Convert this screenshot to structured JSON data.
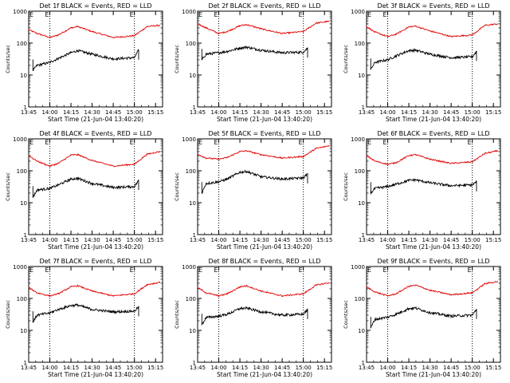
{
  "figure_title": "",
  "colors": {
    "events": "#000000",
    "lld": "#e00000",
    "axes": "#000000",
    "background": "#ffffff"
  },
  "chart_data": [
    {
      "type": "line",
      "detector": "1f",
      "title": "Det 1f BLACK = Events, RED = LLD",
      "xlabel": "Start Time (21-Jun-04 13:40:20)",
      "ylabel": "Counts/sec",
      "xlim": [
        13.75,
        15.333
      ],
      "ylim": [
        1,
        1000
      ],
      "yscale": "log",
      "x_ticks": [
        "13:45",
        "14:00",
        "14:15",
        "14:30",
        "14:45",
        "15:00",
        "15:15"
      ],
      "y_ticks": [
        "1",
        "10",
        "100",
        "1000"
      ],
      "attenuator_markers": [
        {
          "time": 14.0,
          "label": "E"
        },
        {
          "time": 15.0,
          "label": "E"
        }
      ],
      "series": [
        {
          "name": "LLD",
          "color": "#e00000",
          "x": [
            13.75,
            13.85,
            14.0,
            14.1,
            14.25,
            14.33,
            14.5,
            14.75,
            15.0,
            15.15,
            15.3
          ],
          "y": [
            260,
            200,
            150,
            180,
            300,
            330,
            230,
            150,
            170,
            330,
            360
          ]
        },
        {
          "name": "Events",
          "color": "#000000",
          "x": [
            13.8,
            13.85,
            14.0,
            14.1,
            14.25,
            14.33,
            14.5,
            14.75,
            15.0,
            15.05
          ],
          "y": [
            14,
            20,
            25,
            33,
            50,
            58,
            45,
            32,
            35,
            60
          ]
        }
      ]
    },
    {
      "type": "line",
      "detector": "2f",
      "title": "Det 2f BLACK = Events, RED = LLD",
      "xlabel": "Start Time (21-Jun-04 13:40:20)",
      "ylabel": "Counts/sec",
      "xlim": [
        13.75,
        15.333
      ],
      "ylim": [
        1,
        1000
      ],
      "yscale": "log",
      "x_ticks": [
        "13:45",
        "14:00",
        "14:15",
        "14:30",
        "14:45",
        "15:00",
        "15:15"
      ],
      "y_ticks": [
        "1",
        "10",
        "100",
        "1000"
      ],
      "attenuator_markers": [
        {
          "time": 14.0,
          "label": "E"
        },
        {
          "time": 15.0,
          "label": "E"
        }
      ],
      "series": [
        {
          "name": "LLD",
          "color": "#e00000",
          "x": [
            13.75,
            13.85,
            14.0,
            14.1,
            14.25,
            14.33,
            14.5,
            14.75,
            15.0,
            15.15,
            15.3
          ],
          "y": [
            400,
            300,
            200,
            230,
            350,
            380,
            280,
            200,
            230,
            420,
            480
          ]
        },
        {
          "name": "Events",
          "color": "#000000",
          "x": [
            13.8,
            13.85,
            14.0,
            14.1,
            14.25,
            14.33,
            14.5,
            14.75,
            15.0,
            15.05
          ],
          "y": [
            30,
            45,
            50,
            55,
            70,
            75,
            60,
            50,
            52,
            70
          ]
        }
      ]
    },
    {
      "type": "line",
      "detector": "3f",
      "title": "Det 3f BLACK = Events, RED = LLD",
      "xlabel": "Start Time (21-Jun-04 13:40:20)",
      "ylabel": "Counts/sec",
      "xlim": [
        13.75,
        15.333
      ],
      "ylim": [
        1,
        1000
      ],
      "yscale": "log",
      "x_ticks": [
        "13:45",
        "14:00",
        "14:15",
        "14:30",
        "14:45",
        "15:00",
        "15:15"
      ],
      "y_ticks": [
        "1",
        "10",
        "100",
        "1000"
      ],
      "attenuator_markers": [
        {
          "time": 14.0,
          "label": "E"
        },
        {
          "time": 15.0,
          "label": "E"
        }
      ],
      "series": [
        {
          "name": "LLD",
          "color": "#e00000",
          "x": [
            13.75,
            13.85,
            14.0,
            14.1,
            14.25,
            14.33,
            14.5,
            14.75,
            15.0,
            15.15,
            15.3
          ],
          "y": [
            330,
            220,
            160,
            190,
            320,
            340,
            240,
            160,
            180,
            360,
            400
          ]
        },
        {
          "name": "Events",
          "color": "#000000",
          "x": [
            13.8,
            13.85,
            14.0,
            14.1,
            14.25,
            14.33,
            14.5,
            14.75,
            15.0,
            15.05
          ],
          "y": [
            15,
            25,
            30,
            40,
            58,
            60,
            45,
            35,
            37,
            55
          ]
        }
      ]
    },
    {
      "type": "line",
      "detector": "4f",
      "title": "Det 4f BLACK = Events, RED = LLD",
      "xlabel": "Start Time (21-Jun-04 13:40:20)",
      "ylabel": "Counts/sec",
      "xlim": [
        13.75,
        15.333
      ],
      "ylim": [
        1,
        1000
      ],
      "yscale": "log",
      "x_ticks": [
        "13:45",
        "14:00",
        "14:15",
        "14:30",
        "14:45",
        "15:00",
        "15:15"
      ],
      "y_ticks": [
        "1",
        "10",
        "100",
        "1000"
      ],
      "attenuator_markers": [
        {
          "time": 14.0,
          "label": "E"
        },
        {
          "time": 15.0,
          "label": "E"
        }
      ],
      "series": [
        {
          "name": "LLD",
          "color": "#e00000",
          "x": [
            13.75,
            13.85,
            14.0,
            14.1,
            14.25,
            14.33,
            14.5,
            14.75,
            15.0,
            15.15,
            15.3
          ],
          "y": [
            300,
            200,
            140,
            170,
            310,
            320,
            210,
            140,
            160,
            330,
            400
          ]
        },
        {
          "name": "Events",
          "color": "#000000",
          "x": [
            13.8,
            13.85,
            14.0,
            14.1,
            14.25,
            14.33,
            14.5,
            14.75,
            15.0,
            15.05
          ],
          "y": [
            15,
            25,
            28,
            36,
            55,
            58,
            40,
            30,
            32,
            50
          ]
        }
      ]
    },
    {
      "type": "line",
      "detector": "5f",
      "title": "Det 5f BLACK = Events, RED = LLD",
      "xlabel": "Start Time (21-Jun-04 13:40:20)",
      "ylabel": "Counts/sec",
      "xlim": [
        13.75,
        15.333
      ],
      "ylim": [
        1,
        1000
      ],
      "yscale": "log",
      "x_ticks": [
        "13:45",
        "14:00",
        "14:15",
        "14:30",
        "14:45",
        "15:00",
        "15:15"
      ],
      "y_ticks": [
        "1",
        "10",
        "100",
        "1000"
      ],
      "attenuator_markers": [
        {
          "time": 14.0,
          "label": "E"
        },
        {
          "time": 15.0,
          "label": "E"
        }
      ],
      "series": [
        {
          "name": "LLD",
          "color": "#e00000",
          "x": [
            13.75,
            13.85,
            14.0,
            14.1,
            14.25,
            14.33,
            14.5,
            14.75,
            15.0,
            15.15,
            15.3
          ],
          "y": [
            330,
            250,
            230,
            260,
            400,
            420,
            320,
            250,
            280,
            500,
            600
          ]
        },
        {
          "name": "Events",
          "color": "#000000",
          "x": [
            13.8,
            13.85,
            14.0,
            14.1,
            14.25,
            14.33,
            14.5,
            14.75,
            15.0,
            15.05
          ],
          "y": [
            20,
            40,
            45,
            55,
            90,
            95,
            65,
            55,
            60,
            80
          ]
        }
      ]
    },
    {
      "type": "line",
      "detector": "6f",
      "title": "Det 6f BLACK = Events, RED = LLD",
      "xlabel": "Start Time (21-Jun-04 13:40:20)",
      "ylabel": "Counts/sec",
      "xlim": [
        13.75,
        15.333
      ],
      "ylim": [
        1,
        1000
      ],
      "yscale": "log",
      "x_ticks": [
        "13:45",
        "14:00",
        "14:15",
        "14:30",
        "14:45",
        "15:00",
        "15:15"
      ],
      "y_ticks": [
        "1",
        "10",
        "100",
        "1000"
      ],
      "attenuator_markers": [
        {
          "time": 14.0,
          "label": "E"
        },
        {
          "time": 15.0,
          "label": "E"
        }
      ],
      "series": [
        {
          "name": "LLD",
          "color": "#e00000",
          "x": [
            13.75,
            13.85,
            14.0,
            14.1,
            14.25,
            14.33,
            14.5,
            14.75,
            15.0,
            15.15,
            15.3
          ],
          "y": [
            300,
            200,
            160,
            180,
            300,
            320,
            230,
            170,
            190,
            350,
            420
          ]
        },
        {
          "name": "Events",
          "color": "#000000",
          "x": [
            13.8,
            13.85,
            14.0,
            14.1,
            14.25,
            14.33,
            14.5,
            14.75,
            15.0,
            15.05
          ],
          "y": [
            20,
            28,
            32,
            38,
            50,
            52,
            42,
            34,
            36,
            45
          ]
        }
      ]
    },
    {
      "type": "line",
      "detector": "7f",
      "title": "Det 7f BLACK = Events, RED = LLD",
      "xlabel": "Start Time (21-Jun-04 13:40:20)",
      "ylabel": "Counts/sec",
      "xlim": [
        13.75,
        15.333
      ],
      "ylim": [
        1,
        1000
      ],
      "yscale": "log",
      "x_ticks": [
        "13:45",
        "14:00",
        "14:15",
        "14:30",
        "14:45",
        "15:00",
        "15:15"
      ],
      "y_ticks": [
        "1",
        "10",
        "100",
        "1000"
      ],
      "attenuator_markers": [
        {
          "time": 14.0,
          "label": "E"
        },
        {
          "time": 15.0,
          "label": "E"
        }
      ],
      "series": [
        {
          "name": "LLD",
          "color": "#e00000",
          "x": [
            13.75,
            13.85,
            14.0,
            14.1,
            14.25,
            14.33,
            14.5,
            14.75,
            15.0,
            15.15,
            15.3
          ],
          "y": [
            220,
            150,
            120,
            140,
            230,
            250,
            170,
            120,
            140,
            270,
            320
          ]
        },
        {
          "name": "Events",
          "color": "#000000",
          "x": [
            13.8,
            13.85,
            14.0,
            14.1,
            14.25,
            14.33,
            14.5,
            14.75,
            15.0,
            15.05
          ],
          "y": [
            18,
            30,
            35,
            45,
            60,
            62,
            45,
            38,
            40,
            55
          ]
        }
      ]
    },
    {
      "type": "line",
      "detector": "8f",
      "title": "Det 8f BLACK = Events, RED = LLD",
      "xlabel": "Start Time (21-Jun-04 13:40:20)",
      "ylabel": "Counts/sec",
      "xlim": [
        13.75,
        15.333
      ],
      "ylim": [
        1,
        1000
      ],
      "yscale": "log",
      "x_ticks": [
        "13:45",
        "14:00",
        "14:15",
        "14:30",
        "14:45",
        "15:00",
        "15:15"
      ],
      "y_ticks": [
        "1",
        "10",
        "100",
        "1000"
      ],
      "attenuator_markers": [
        {
          "time": 14.0,
          "label": "E"
        },
        {
          "time": 15.0,
          "label": "E"
        }
      ],
      "series": [
        {
          "name": "LLD",
          "color": "#e00000",
          "x": [
            13.75,
            13.85,
            14.0,
            14.1,
            14.25,
            14.33,
            14.5,
            14.75,
            15.0,
            15.15,
            15.3
          ],
          "y": [
            220,
            150,
            120,
            140,
            230,
            250,
            170,
            120,
            140,
            260,
            310
          ]
        },
        {
          "name": "Events",
          "color": "#000000",
          "x": [
            13.8,
            13.85,
            14.0,
            14.1,
            14.25,
            14.33,
            14.5,
            14.75,
            15.0,
            15.05
          ],
          "y": [
            15,
            25,
            28,
            32,
            48,
            50,
            38,
            30,
            32,
            45
          ]
        }
      ]
    },
    {
      "type": "line",
      "detector": "9f",
      "title": "Det 9f BLACK = Events, RED = LLD",
      "xlabel": "Start Time (21-Jun-04 13:40:20)",
      "ylabel": "Counts/sec",
      "xlim": [
        13.75,
        15.333
      ],
      "ylim": [
        1,
        1000
      ],
      "yscale": "log",
      "x_ticks": [
        "13:45",
        "14:00",
        "14:15",
        "14:30",
        "14:45",
        "15:00",
        "15:15"
      ],
      "y_ticks": [
        "1",
        "10",
        "100",
        "1000"
      ],
      "attenuator_markers": [
        {
          "time": 14.0,
          "label": "E"
        },
        {
          "time": 15.0,
          "label": "E"
        }
      ],
      "series": [
        {
          "name": "LLD",
          "color": "#e00000",
          "x": [
            13.75,
            13.85,
            14.0,
            14.1,
            14.25,
            14.33,
            14.5,
            14.75,
            15.0,
            15.15,
            15.3
          ],
          "y": [
            230,
            160,
            120,
            140,
            240,
            260,
            180,
            130,
            150,
            290,
            340
          ]
        },
        {
          "name": "Events",
          "color": "#000000",
          "x": [
            13.8,
            13.85,
            14.0,
            14.1,
            14.25,
            14.33,
            14.5,
            14.75,
            15.0,
            15.05
          ],
          "y": [
            12,
            22,
            26,
            32,
            48,
            50,
            36,
            28,
            30,
            45
          ]
        }
      ]
    }
  ]
}
